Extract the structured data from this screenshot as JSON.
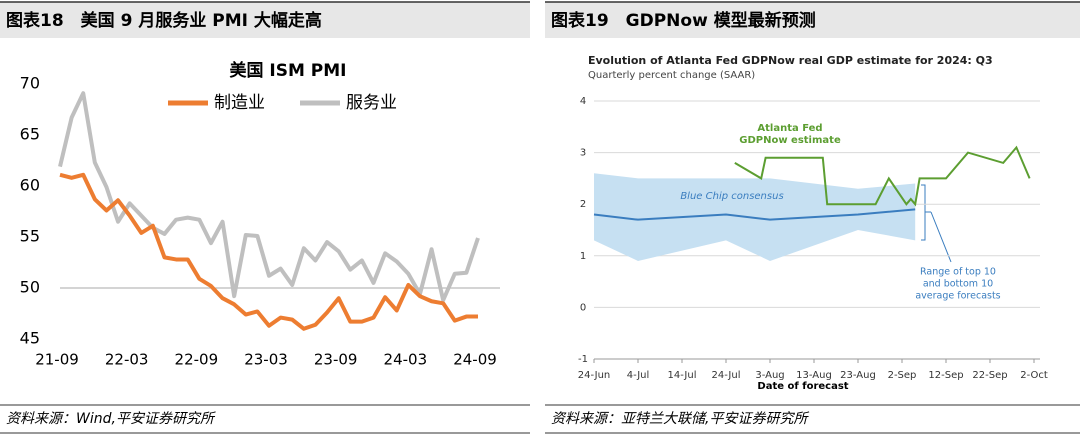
{
  "panels": [
    {
      "header": "图表18　美国 9 月服务业 PMI 大幅走高",
      "source": "资料来源：Wind,平安证券研究所"
    },
    {
      "header": "图表19　GDPNow 模型最新预测",
      "source": "资料来源：亚特兰大联储,平安证券研究所"
    }
  ],
  "chart_data": [
    {
      "type": "line",
      "title": "美国 ISM PMI",
      "categories": [
        "21-09",
        null,
        null,
        null,
        null,
        null,
        "22-03",
        null,
        null,
        null,
        null,
        null,
        "22-09",
        null,
        null,
        null,
        null,
        null,
        "23-03",
        null,
        null,
        null,
        null,
        null,
        "23-09",
        null,
        null,
        null,
        null,
        null,
        "24-03",
        null,
        null,
        null,
        null,
        null,
        "24-09"
      ],
      "series": [
        {
          "name": "制造业",
          "color": "#ed7d31",
          "values": [
            61.1,
            60.8,
            61.1,
            58.7,
            57.6,
            58.6,
            57.1,
            55.4,
            56.1,
            53.0,
            52.8,
            52.8,
            50.9,
            50.2,
            49.0,
            48.4,
            47.4,
            47.7,
            46.3,
            47.1,
            46.9,
            46.0,
            46.4,
            47.6,
            49.0,
            46.7,
            46.7,
            47.1,
            49.1,
            47.8,
            50.3,
            49.2,
            48.7,
            48.5,
            46.8,
            47.2,
            47.2
          ]
        },
        {
          "name": "服务业",
          "color": "#bfbfbf",
          "values": [
            61.9,
            66.7,
            69.1,
            62.3,
            59.9,
            56.5,
            58.3,
            57.1,
            55.9,
            55.3,
            56.7,
            56.9,
            56.7,
            54.4,
            56.5,
            49.2,
            55.2,
            55.1,
            51.2,
            51.9,
            50.3,
            53.9,
            52.7,
            54.5,
            53.6,
            51.8,
            52.7,
            50.5,
            53.4,
            52.6,
            51.4,
            49.4,
            53.8,
            48.8,
            51.4,
            51.5,
            54.9
          ]
        }
      ],
      "ylim": [
        45,
        70
      ],
      "yticks": [
        45,
        50,
        55,
        60,
        65,
        70
      ],
      "x_axis_crosses": 50,
      "legend": "top"
    },
    {
      "type": "line",
      "title": "Evolution of Atlanta Fed GDPNow real GDP estimate for 2024: Q3",
      "subtitle": "Quarterly percent change (SAAR)",
      "x_label": "Date of forecast",
      "xlim": [
        0,
        100
      ],
      "xticks": [
        {
          "value": 0,
          "label": "24-Jun"
        },
        {
          "value": 10,
          "label": "4-Jul"
        },
        {
          "value": 20,
          "label": "14-Jul"
        },
        {
          "value": 30,
          "label": "24-Jul"
        },
        {
          "value": 40,
          "label": "3-Aug"
        },
        {
          "value": 50,
          "label": "13-Aug"
        },
        {
          "value": 60,
          "label": "23-Aug"
        },
        {
          "value": 70,
          "label": "2-Sep"
        },
        {
          "value": 80,
          "label": "12-Sep"
        },
        {
          "value": 90,
          "label": "22-Sep"
        },
        {
          "value": 100,
          "label": "2-Oct"
        }
      ],
      "ylim": [
        -1,
        4
      ],
      "yticks": [
        -1,
        0,
        1,
        2,
        3,
        4
      ],
      "grid": true,
      "band": {
        "color": "#c6e0f2",
        "x": [
          0,
          10,
          30,
          40,
          60,
          73
        ],
        "upper": [
          2.6,
          2.5,
          2.5,
          2.5,
          2.3,
          2.4
        ],
        "lower": [
          1.3,
          0.9,
          1.3,
          0.9,
          1.5,
          1.3
        ]
      },
      "series": [
        {
          "color": "#5c9e31",
          "x": [
            32,
            38,
            39,
            52,
            53,
            64,
            67,
            71,
            72,
            73,
            74,
            80,
            85,
            93,
            96,
            99
          ],
          "values": [
            2.8,
            2.5,
            2.9,
            2.9,
            2.0,
            2.0,
            2.5,
            2.0,
            2.1,
            2.0,
            2.5,
            2.5,
            3.0,
            2.8,
            3.1,
            2.5
          ]
        },
        {
          "color": "#3a7dbf",
          "x": [
            0,
            10,
            30,
            40,
            60,
            73
          ],
          "values": [
            1.8,
            1.7,
            1.8,
            1.7,
            1.8,
            1.9
          ]
        }
      ],
      "annotations": [
        {
          "text": [
            "Atlanta Fed",
            "GDPNow estimate"
          ],
          "color": "#5c9e31"
        },
        {
          "text": [
            "Blue Chip consensus"
          ],
          "color": "#3a7dbf"
        },
        {
          "text": [
            "Range of top 10",
            "and bottom 10",
            "average forecasts"
          ],
          "color": "#3a7dbf"
        }
      ]
    }
  ]
}
